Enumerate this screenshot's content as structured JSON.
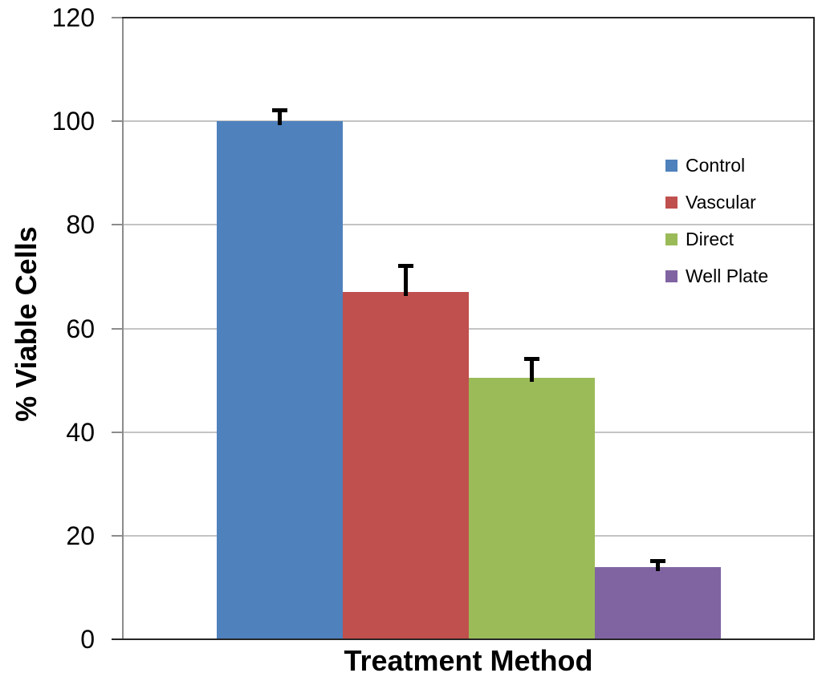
{
  "chart_data": {
    "type": "bar",
    "title": "",
    "xlabel": "Treatment Method",
    "ylabel": "% Viable Cells",
    "categories": [
      "Control",
      "Vascular",
      "Direct",
      "Well Plate"
    ],
    "values": [
      100,
      67,
      50.5,
      14
    ],
    "errors_plus": [
      2,
      5,
      3.5,
      1
    ],
    "bar_colors": [
      "#4F81BD",
      "#C0504D",
      "#9BBB59",
      "#8064A2"
    ],
    "ylim": [
      0,
      120
    ],
    "yticks": [
      0,
      20,
      40,
      60,
      80,
      100,
      120
    ],
    "grid": true,
    "legend": {
      "position": "inside-right",
      "items": [
        "Control",
        "Vascular",
        "Direct",
        "Well Plate"
      ]
    },
    "style": {
      "gridline_color": "#C4C4C4",
      "axis_line_color": "#8C8C8C",
      "plot_border_color": "#262626",
      "error_bar_color": "#000000",
      "text_color": "#000000",
      "background_color": "#FFFFFF"
    }
  }
}
